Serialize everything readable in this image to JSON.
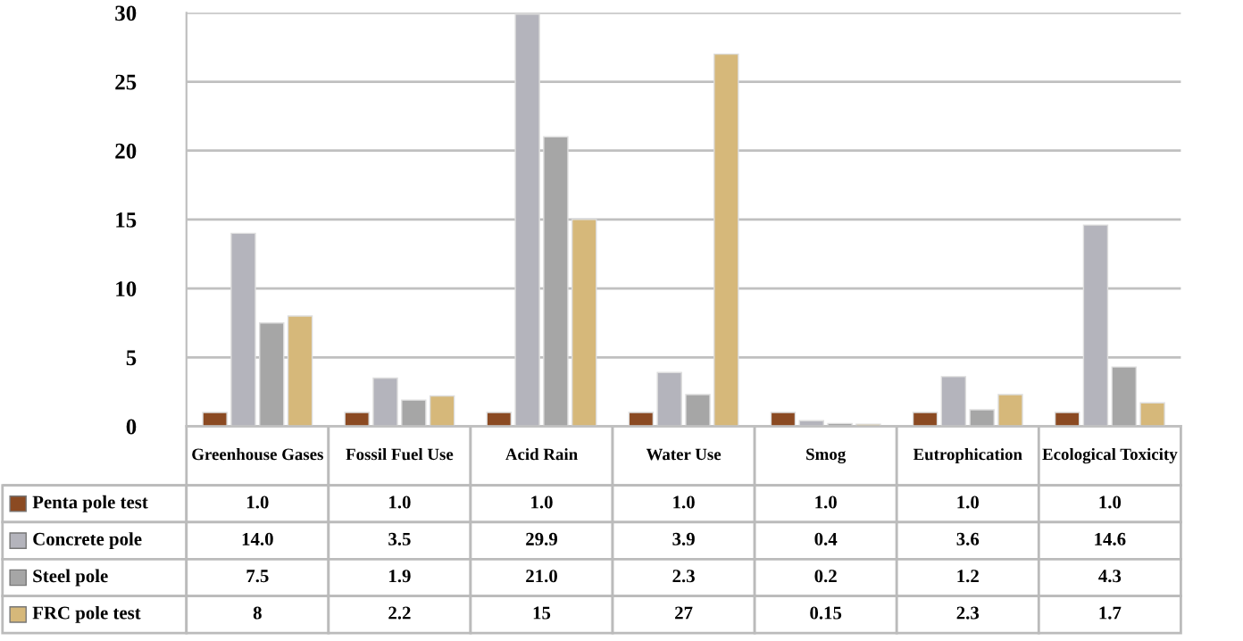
{
  "chart_data": {
    "type": "bar",
    "categories": [
      "Greenhouse Gases",
      "Fossil Fuel Use",
      "Acid Rain",
      "Water Use",
      "Smog",
      "Eutrophication",
      "Ecological Toxicity"
    ],
    "series": [
      {
        "name": "Penta pole test",
        "color": "#8b4a22",
        "values": [
          1.0,
          1.0,
          1.0,
          1.0,
          1.0,
          1.0,
          1.0
        ],
        "value_labels": [
          "1.0",
          "1.0",
          "1.0",
          "1.0",
          "1.0",
          "1.0",
          "1.0"
        ]
      },
      {
        "name": "Concrete pole",
        "color": "#b4b4bc",
        "values": [
          14.0,
          3.5,
          29.9,
          3.9,
          0.4,
          3.6,
          14.6
        ],
        "value_labels": [
          "14.0",
          "3.5",
          "29.9",
          "3.9",
          "0.4",
          "3.6",
          "14.6"
        ]
      },
      {
        "name": "Steel pole",
        "color": "#a6a6a6",
        "values": [
          7.5,
          1.9,
          21.0,
          2.3,
          0.2,
          1.2,
          4.3
        ],
        "value_labels": [
          "7.5",
          "1.9",
          "21.0",
          "2.3",
          "0.2",
          "1.2",
          "4.3"
        ]
      },
      {
        "name": "FRC pole test",
        "color": "#d6b87a",
        "values": [
          8,
          2.2,
          15,
          27,
          0.15,
          2.3,
          1.7
        ],
        "value_labels": [
          "8",
          "2.2",
          "15",
          "27",
          "0.15",
          "2.3",
          "1.7"
        ]
      }
    ],
    "ylim": [
      0,
      30
    ],
    "yticks": [
      0,
      5,
      10,
      15,
      20,
      25,
      30
    ],
    "grid": "y",
    "legend": "bottom left"
  }
}
